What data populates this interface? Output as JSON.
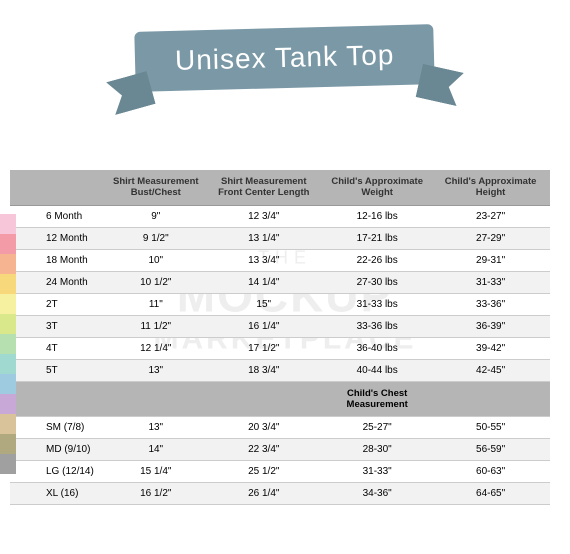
{
  "banner": {
    "title": "Unisex Tank Top",
    "bg": "#7a98a6"
  },
  "watermark": {
    "line1": "THE",
    "line2": "MOCKUP",
    "line3": "MARKETPLACE"
  },
  "swatches": [
    "#f7c6d8",
    "#f49ba8",
    "#f6b590",
    "#f7d97c",
    "#f5f1a0",
    "#d8e88a",
    "#b7e0b0",
    "#9fd9d0",
    "#9fcbe0",
    "#c7a8d6",
    "#d8c39b",
    "#b0a87f",
    "#a0a0a0"
  ],
  "table": {
    "type": "table",
    "headers": [
      "",
      "Shirt Measurement Bust/Chest",
      "Shirt Measurement Front Center Length",
      "Child's Approximate Weight",
      "Child's Approximate Height"
    ],
    "mid_header": "Child's Chest Measurement",
    "section1_rows": [
      {
        "size": "6 Month",
        "bust": "9\"",
        "length": "12 3/4\"",
        "weight": "12-16 lbs",
        "height": "23-27\""
      },
      {
        "size": "12 Month",
        "bust": "9 1/2\"",
        "length": "13 1/4\"",
        "weight": "17-21 lbs",
        "height": "27-29\""
      },
      {
        "size": "18 Month",
        "bust": "10\"",
        "length": "13 3/4\"",
        "weight": "22-26 lbs",
        "height": "29-31\""
      },
      {
        "size": "24 Month",
        "bust": "10 1/2\"",
        "length": "14 1/4\"",
        "weight": "27-30 lbs",
        "height": "31-33\""
      },
      {
        "size": "2T",
        "bust": "11\"",
        "length": "15\"",
        "weight": "31-33 lbs",
        "height": "33-36\""
      },
      {
        "size": "3T",
        "bust": "11 1/2\"",
        "length": "16 1/4\"",
        "weight": "33-36 lbs",
        "height": "36-39\""
      },
      {
        "size": "4T",
        "bust": "12 1/4\"",
        "length": "17 1/2\"",
        "weight": "36-40 lbs",
        "height": "39-42\""
      },
      {
        "size": "5T",
        "bust": "13\"",
        "length": "18 3/4\"",
        "weight": "40-44 lbs",
        "height": "42-45\""
      }
    ],
    "section2_rows": [
      {
        "size": "SM (7/8)",
        "bust": "13\"",
        "length": "20 3/4\"",
        "weight": "25-27\"",
        "height": "50-55\""
      },
      {
        "size": "MD (9/10)",
        "bust": "14\"",
        "length": "22 3/4\"",
        "weight": "28-30\"",
        "height": "56-59\""
      },
      {
        "size": "LG (12/14)",
        "bust": "15 1/4\"",
        "length": "25 1/2\"",
        "weight": "31-33\"",
        "height": "60-63\""
      },
      {
        "size": "XL (16)",
        "bust": "16 1/2\"",
        "length": "26 1/4\"",
        "weight": "34-36\"",
        "height": "64-65\""
      }
    ],
    "header_bg": "#b5b5b5",
    "row_alt_bg": "#f2f2f2",
    "border_color": "#cccccc",
    "font_size_header": 9.5,
    "font_size_body": 10
  }
}
